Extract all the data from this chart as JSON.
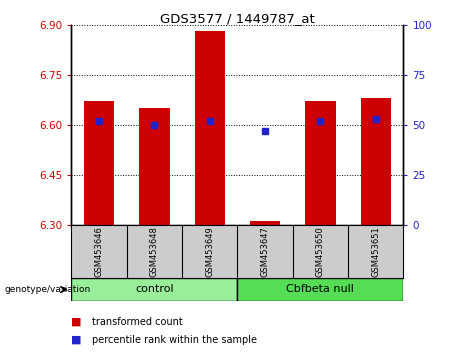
{
  "title": "GDS3577 / 1449787_at",
  "samples": [
    "GSM453646",
    "GSM453648",
    "GSM453649",
    "GSM453647",
    "GSM453650",
    "GSM453651"
  ],
  "transformed_counts": [
    6.67,
    6.65,
    6.88,
    6.31,
    6.67,
    6.68
  ],
  "percentile_ranks": [
    52,
    50,
    52,
    47,
    52,
    53
  ],
  "ylim_left": [
    6.3,
    6.9
  ],
  "ylim_right": [
    0,
    100
  ],
  "yticks_left": [
    6.3,
    6.45,
    6.6,
    6.75,
    6.9
  ],
  "yticks_right": [
    0,
    25,
    50,
    75,
    100
  ],
  "bar_color": "#CC0000",
  "dot_color": "#2222CC",
  "bar_bottom": 6.3,
  "bar_width": 0.55,
  "tick_label_color_left": "#CC0000",
  "tick_label_color_right": "#2222CC",
  "group_control_color": "#99EE99",
  "group_null_color": "#55DD55",
  "group_border_color": "#000000",
  "sample_box_color": "#CCCCCC",
  "legend_red_label": "transformed count",
  "legend_blue_label": "percentile rank within the sample",
  "group_label_left": "control",
  "group_label_right": "Cbfbeta null",
  "genotype_label": "genotype/variation"
}
